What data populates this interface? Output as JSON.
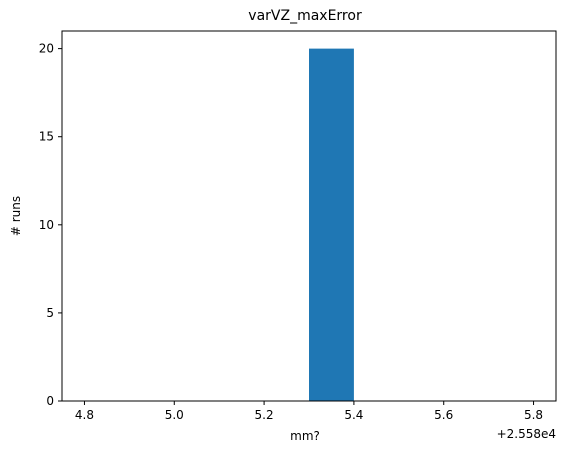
{
  "chart_data": {
    "type": "bar",
    "title": "varVZ_maxError",
    "xlabel": "mm?",
    "ylabel": "# runs",
    "offset_label": "+2.558e4",
    "xlim": [
      4.75,
      5.85
    ],
    "ylim": [
      0,
      21
    ],
    "xticks": [
      {
        "value": 4.8,
        "label": "4.8"
      },
      {
        "value": 5.0,
        "label": "5.0"
      },
      {
        "value": 5.2,
        "label": "5.2"
      },
      {
        "value": 5.4,
        "label": "5.4"
      },
      {
        "value": 5.6,
        "label": "5.6"
      },
      {
        "value": 5.8,
        "label": "5.8"
      }
    ],
    "yticks": [
      {
        "value": 0,
        "label": "0"
      },
      {
        "value": 5,
        "label": "5"
      },
      {
        "value": 10,
        "label": "10"
      },
      {
        "value": 15,
        "label": "15"
      },
      {
        "value": 20,
        "label": "20"
      }
    ],
    "bars": [
      {
        "x0": 5.3,
        "x1": 5.4,
        "value": 20
      }
    ],
    "bar_color": "#1f77b4",
    "grid": false
  }
}
